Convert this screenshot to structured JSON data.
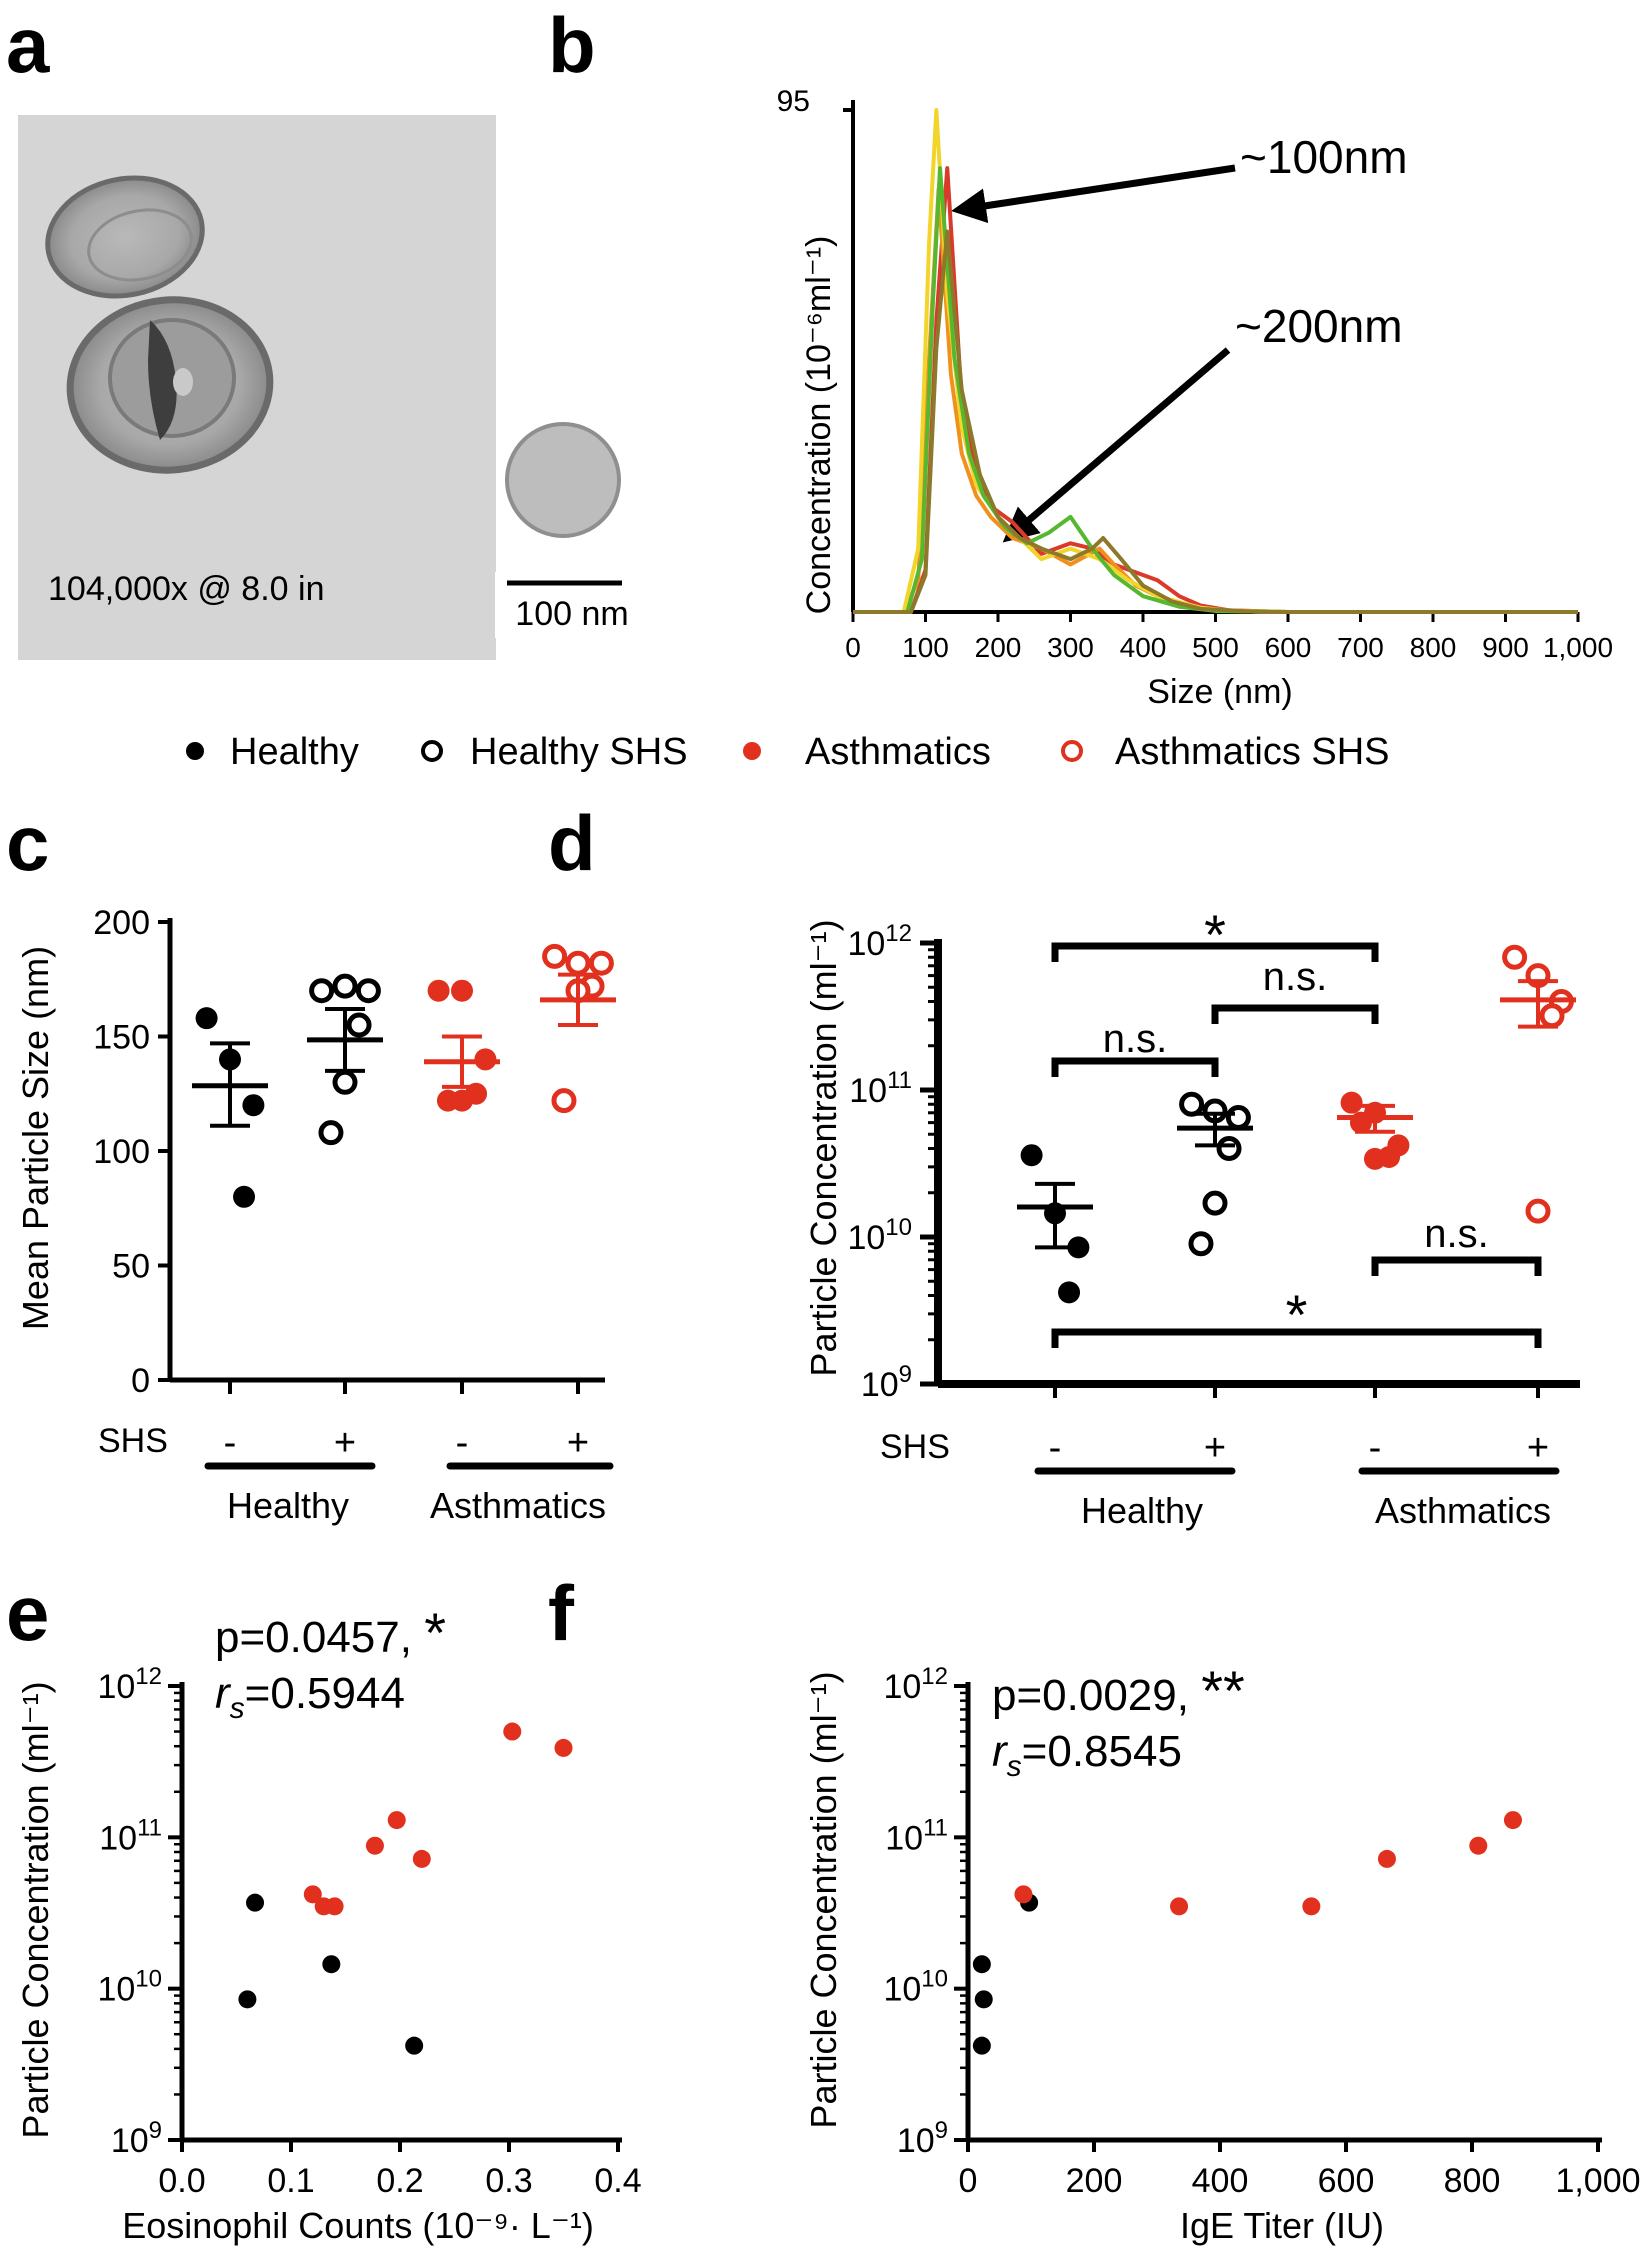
{
  "figure": {
    "panel_letters": [
      "a",
      "b",
      "c",
      "d",
      "e",
      "f"
    ],
    "legend": [
      {
        "label": "Healthy",
        "marker": "filled",
        "color": "#000000"
      },
      {
        "label": "Healthy SHS",
        "marker": "open",
        "color": "#000000"
      },
      {
        "label": "Asthmatics",
        "marker": "filled",
        "color": "#e1301e"
      },
      {
        "label": "Asthmatics SHS",
        "marker": "open",
        "color": "#e1301e"
      }
    ],
    "colors": {
      "healthy": "#000000",
      "asthma": "#e1301e",
      "micrograph_bg": "#d4d4d4"
    }
  },
  "micrograph": {
    "magnification_label": "104,000x @ 8.0 in",
    "scale_bar_label": "100 nm"
  },
  "chart_data": [
    {
      "panel": "b",
      "type": "line",
      "xlabel": "Size (nm)",
      "ylabel": "Concentration (10⁻⁶ml⁻¹)",
      "xlim": [
        0,
        1000
      ],
      "ylim": [
        0,
        95
      ],
      "x_ticks": [
        "0",
        "100",
        "200",
        "300",
        "400",
        "500",
        "600",
        "700",
        "800",
        "900",
        "1,000"
      ],
      "y_tick_label": "95",
      "annotations": [
        "~100nm",
        "~200nm"
      ],
      "series": [
        {
          "name": "trace-red",
          "color": "#d93a2a",
          "x": [
            0,
            80,
            100,
            115,
            130,
            150,
            170,
            190,
            220,
            260,
            300,
            330,
            360,
            400,
            420,
            450,
            480,
            520,
            600,
            1000
          ],
          "y": [
            0,
            0,
            8,
            55,
            84,
            40,
            26,
            20,
            17,
            11,
            13,
            12,
            9,
            7,
            6,
            3,
            1.2,
            0.3,
            0,
            0
          ]
        },
        {
          "name": "trace-orange",
          "color": "#f0911e",
          "x": [
            0,
            70,
            90,
            105,
            118,
            135,
            150,
            170,
            190,
            220,
            260,
            300,
            340,
            360,
            390,
            420,
            460,
            520,
            600,
            1000
          ],
          "y": [
            0,
            0,
            6,
            48,
            80,
            45,
            30,
            22,
            18,
            14,
            12,
            9,
            12,
            9,
            5,
            3,
            1,
            0.3,
            0,
            0
          ]
        },
        {
          "name": "trace-yellow",
          "color": "#f2d52a",
          "x": [
            0,
            70,
            90,
            105,
            115,
            130,
            150,
            170,
            200,
            230,
            260,
            300,
            340,
            380,
            420,
            480,
            520,
            600,
            1000
          ],
          "y": [
            0,
            0,
            12,
            70,
            95,
            60,
            35,
            24,
            18,
            14,
            10,
            12,
            10,
            6,
            3,
            0.8,
            0.2,
            0,
            0
          ]
        },
        {
          "name": "trace-green",
          "color": "#55b82e",
          "x": [
            0,
            75,
            95,
            110,
            120,
            140,
            160,
            180,
            210,
            240,
            270,
            300,
            330,
            360,
            400,
            450,
            500,
            600,
            1000
          ],
          "y": [
            0,
            0,
            10,
            58,
            84,
            48,
            30,
            22,
            16,
            13,
            15,
            18,
            12,
            7,
            3,
            1,
            0.2,
            0,
            0
          ]
        },
        {
          "name": "trace-olive",
          "color": "#8c7a2a",
          "x": [
            0,
            80,
            100,
            115,
            130,
            150,
            175,
            200,
            230,
            260,
            300,
            330,
            345,
            370,
            400,
            440,
            480,
            560,
            1000
          ],
          "y": [
            0,
            0,
            7,
            50,
            72,
            42,
            26,
            18,
            14,
            12,
            10,
            12,
            14,
            10,
            5,
            2,
            0.6,
            0,
            0
          ]
        }
      ]
    },
    {
      "panel": "c",
      "type": "scatter",
      "ylabel": "Mean Particle Size (nm)",
      "ylim": [
        0,
        200
      ],
      "y_ticks": [
        0,
        50,
        100,
        150,
        200
      ],
      "shs_label": "SHS",
      "shs_values": [
        "-",
        "+",
        "-",
        "+"
      ],
      "group_labels": [
        "Healthy",
        "Asthmatics"
      ],
      "groups": [
        {
          "name": "Healthy",
          "open": false,
          "values": [
            158,
            140,
            120,
            80
          ],
          "mean": 128.5,
          "sem_low": 111,
          "sem_high": 147
        },
        {
          "name": "Healthy SHS",
          "open": true,
          "values": [
            170,
            172,
            170,
            155,
            130,
            108
          ],
          "mean": 148.5,
          "sem_low": 135,
          "sem_high": 162
        },
        {
          "name": "Asthmatics",
          "open": false,
          "values": [
            170,
            170,
            140,
            125,
            122,
            122
          ],
          "mean": 139,
          "sem_low": 128,
          "sem_high": 150
        },
        {
          "name": "Asthmatics SHS",
          "open": true,
          "values": [
            185,
            182,
            182,
            172,
            170,
            122
          ],
          "mean": 166,
          "sem_low": 155,
          "sem_high": 177
        }
      ]
    },
    {
      "panel": "d",
      "type": "scatter",
      "ylabel": "Particle Concentration (ml⁻¹)",
      "scale": "log",
      "ylim": [
        1000000000.0,
        1000000000000.0
      ],
      "y_ticks": [
        "10⁹",
        "10¹⁰",
        "10¹¹",
        "10¹²"
      ],
      "shs_label": "SHS",
      "shs_values": [
        "-",
        "+",
        "-",
        "+"
      ],
      "group_labels": [
        "Healthy",
        "Asthmatics"
      ],
      "groups": [
        {
          "name": "Healthy",
          "open": false,
          "values": [
            36000000000.0,
            14500000000.0,
            8500000000.0,
            4200000000.0
          ],
          "mean": 16000000000.0,
          "sem_low": 8500000000.0,
          "sem_high": 23000000000.0
        },
        {
          "name": "Healthy SHS",
          "open": true,
          "values": [
            80000000000.0,
            72000000000.0,
            65000000000.0,
            40000000000.0,
            17000000000.0,
            9000000000.0
          ],
          "mean": 55000000000.0,
          "sem_low": 42000000000.0,
          "sem_high": 69000000000.0
        },
        {
          "name": "Asthmatics",
          "open": false,
          "values": [
            82000000000.0,
            70000000000.0,
            42000000000.0,
            35000000000.0,
            34000000000.0,
            60000000000.0
          ],
          "mean": 65000000000.0,
          "sem_low": 52000000000.0,
          "sem_high": 78000000000.0
        },
        {
          "name": "Asthmatics SHS",
          "open": true,
          "values": [
            800000000000.0,
            600000000000.0,
            400000000000.0,
            320000000000.0,
            15000000000.0
          ],
          "mean": 410000000000.0,
          "sem_low": 270000000000.0,
          "sem_high": 550000000000.0
        }
      ],
      "significance": [
        {
          "label": "*",
          "from": 0,
          "to": 2
        },
        {
          "label": "n.s.",
          "from": 1,
          "to": 2
        },
        {
          "label": "n.s.",
          "from": 0,
          "to": 1
        },
        {
          "label": "n.s.",
          "from": 2,
          "to": 3
        },
        {
          "label": "*",
          "from": 0,
          "to": 3
        }
      ]
    },
    {
      "panel": "e",
      "type": "scatter",
      "xlabel": "Eosinophil Counts (10⁻⁹· L⁻¹)",
      "ylabel": "Particle Concentration (ml⁻¹)",
      "scale_y": "log",
      "xlim": [
        0,
        0.4
      ],
      "ylim": [
        1000000000.0,
        1000000000000.0
      ],
      "x_ticks": [
        "0.0",
        "0.1",
        "0.2",
        "0.3",
        "0.4"
      ],
      "y_ticks": [
        "10⁹",
        "10¹⁰",
        "10¹¹",
        "10¹²"
      ],
      "stat_p": "p=0.0457, ",
      "stat_star": "*",
      "stat_r": "=0.5944",
      "points": [
        {
          "x": 0.067,
          "y": 37000000000.0,
          "group": "healthy"
        },
        {
          "x": 0.06,
          "y": 8500000000.0,
          "group": "healthy"
        },
        {
          "x": 0.137,
          "y": 14500000000.0,
          "group": "healthy"
        },
        {
          "x": 0.213,
          "y": 4200000000.0,
          "group": "healthy"
        },
        {
          "x": 0.12,
          "y": 42000000000.0,
          "group": "asthma"
        },
        {
          "x": 0.13,
          "y": 35000000000.0,
          "group": "asthma"
        },
        {
          "x": 0.14,
          "y": 35000000000.0,
          "group": "asthma"
        },
        {
          "x": 0.177,
          "y": 88000000000.0,
          "group": "asthma"
        },
        {
          "x": 0.197,
          "y": 130000000000.0,
          "group": "asthma"
        },
        {
          "x": 0.22,
          "y": 72000000000.0,
          "group": "asthma"
        },
        {
          "x": 0.303,
          "y": 500000000000.0,
          "group": "asthma"
        },
        {
          "x": 0.35,
          "y": 390000000000.0,
          "group": "asthma"
        }
      ]
    },
    {
      "panel": "f",
      "type": "scatter",
      "xlabel": "IgE Titer (IU)",
      "ylabel": "Particle Concentration (ml⁻¹)",
      "scale_y": "log",
      "xlim": [
        0,
        1000
      ],
      "ylim": [
        1000000000.0,
        1000000000000.0
      ],
      "x_ticks": [
        "0",
        "200",
        "400",
        "600",
        "800",
        "1,000"
      ],
      "y_ticks": [
        "10⁹",
        "10¹⁰",
        "10¹¹",
        "10¹²"
      ],
      "stat_p": "p=0.0029, ",
      "stat_star": "**",
      "stat_r": "=0.8545",
      "points": [
        {
          "x": 22,
          "y": 14500000000.0,
          "group": "healthy"
        },
        {
          "x": 25,
          "y": 8500000000.0,
          "group": "healthy"
        },
        {
          "x": 22,
          "y": 4200000000.0,
          "group": "healthy"
        },
        {
          "x": 97,
          "y": 37000000000.0,
          "group": "healthy"
        },
        {
          "x": 88,
          "y": 42000000000.0,
          "group": "asthma"
        },
        {
          "x": 335,
          "y": 35000000000.0,
          "group": "asthma"
        },
        {
          "x": 545,
          "y": 35000000000.0,
          "group": "asthma"
        },
        {
          "x": 665,
          "y": 72000000000.0,
          "group": "asthma"
        },
        {
          "x": 810,
          "y": 88000000000.0,
          "group": "asthma"
        },
        {
          "x": 865,
          "y": 130000000000.0,
          "group": "asthma"
        }
      ]
    }
  ]
}
